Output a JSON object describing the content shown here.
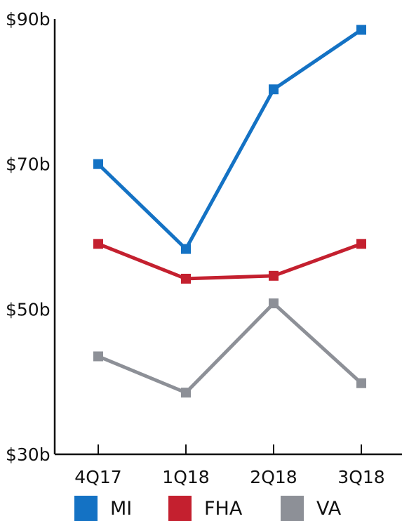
{
  "chart_data": {
    "type": "line",
    "categories": [
      "4Q17",
      "1Q18",
      "2Q18",
      "3Q18"
    ],
    "series": [
      {
        "name": "MI",
        "color": "#1472c4",
        "values": [
          70.0,
          58.3,
          80.3,
          88.5
        ]
      },
      {
        "name": "FHA",
        "color": "#c4202f",
        "values": [
          59.0,
          54.2,
          54.6,
          59.0
        ]
      },
      {
        "name": "VA",
        "color": "#8d9097",
        "values": [
          43.5,
          38.5,
          50.8,
          39.8
        ]
      }
    ],
    "y_ticks": [
      "$30b",
      "$50b",
      "$70b",
      "$90b"
    ],
    "y_tick_values": [
      30,
      50,
      70,
      90
    ],
    "ylim": [
      30,
      90
    ],
    "title": "",
    "xlabel": "",
    "ylabel": "",
    "grid": false,
    "legend_position": "bottom"
  }
}
